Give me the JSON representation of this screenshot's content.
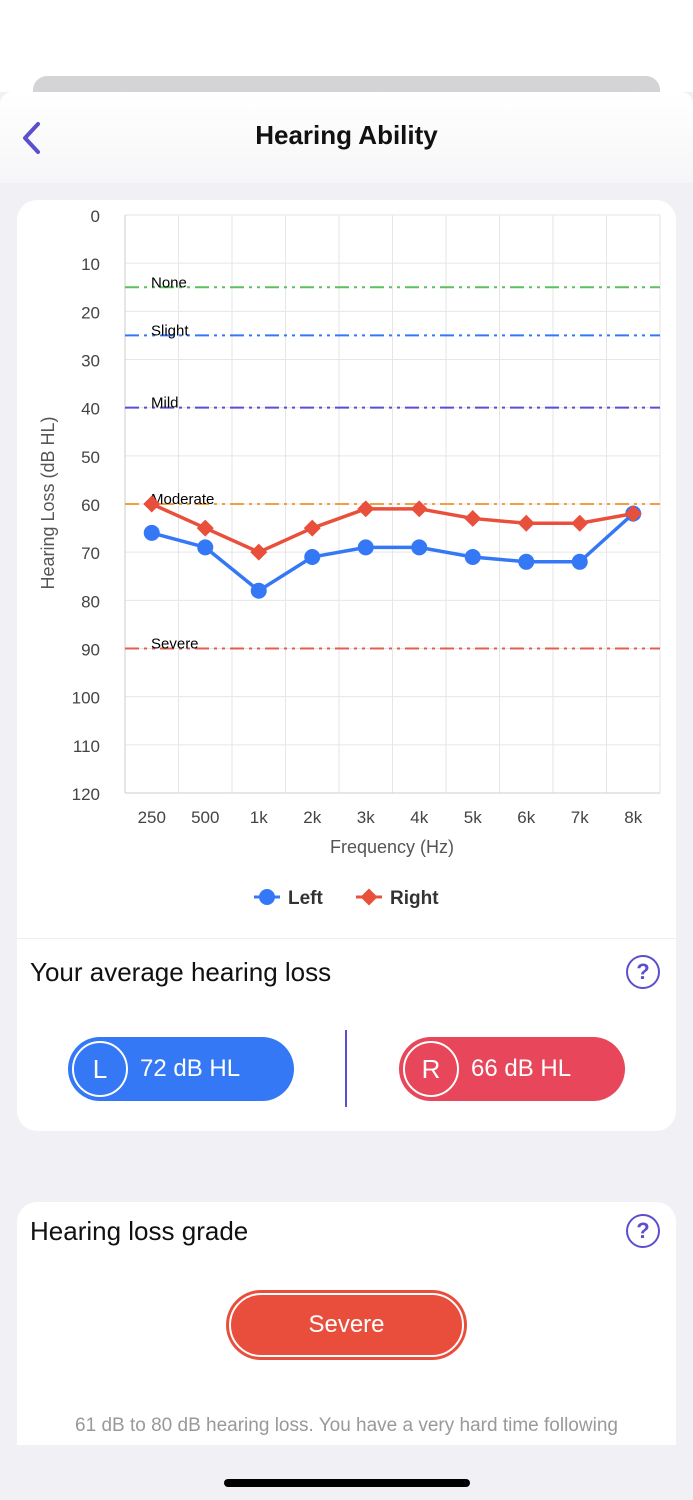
{
  "header": {
    "title": "Hearing Ability",
    "back_icon": "chevron-left-icon"
  },
  "chart_data": {
    "type": "line",
    "categories": [
      "250",
      "500",
      "1k",
      "2k",
      "3k",
      "4k",
      "5k",
      "6k",
      "7k",
      "8k"
    ],
    "series": [
      {
        "name": "Left",
        "color": "#3478f6",
        "marker": "circle",
        "values": [
          66,
          69,
          78,
          71,
          69,
          69,
          71,
          72,
          72,
          62
        ]
      },
      {
        "name": "Right",
        "color": "#e8503c",
        "marker": "diamond",
        "values": [
          60,
          65,
          70,
          65,
          61,
          61,
          63,
          64,
          64,
          62
        ]
      }
    ],
    "xlabel": "Frequency (Hz)",
    "ylabel": "Hearing Loss (dB HL)",
    "ylim": [
      0,
      120
    ],
    "yticks": [
      0,
      10,
      20,
      30,
      40,
      50,
      60,
      70,
      80,
      90,
      100,
      110,
      120
    ],
    "y_inverted": true,
    "grid": true,
    "legend": "bottom",
    "reference_lines": [
      {
        "label": "None",
        "value": 15,
        "color": "#5cc15c"
      },
      {
        "label": "Slight",
        "value": 25,
        "color": "#3478f6"
      },
      {
        "label": "Mild",
        "value": 40,
        "color": "#5a4fcf"
      },
      {
        "label": "Moderate",
        "value": 60,
        "color": "#f0a040"
      },
      {
        "label": "Severe",
        "value": 90,
        "color": "#e06050"
      }
    ]
  },
  "average": {
    "title": "Your average hearing loss",
    "left_letter": "L",
    "left_value": "72 dB HL",
    "right_letter": "R",
    "right_value": "66 dB HL"
  },
  "grade": {
    "title": "Hearing loss grade",
    "value": "Severe",
    "description": "61 dB to 80 dB hearing loss. You have a very hard time following"
  }
}
